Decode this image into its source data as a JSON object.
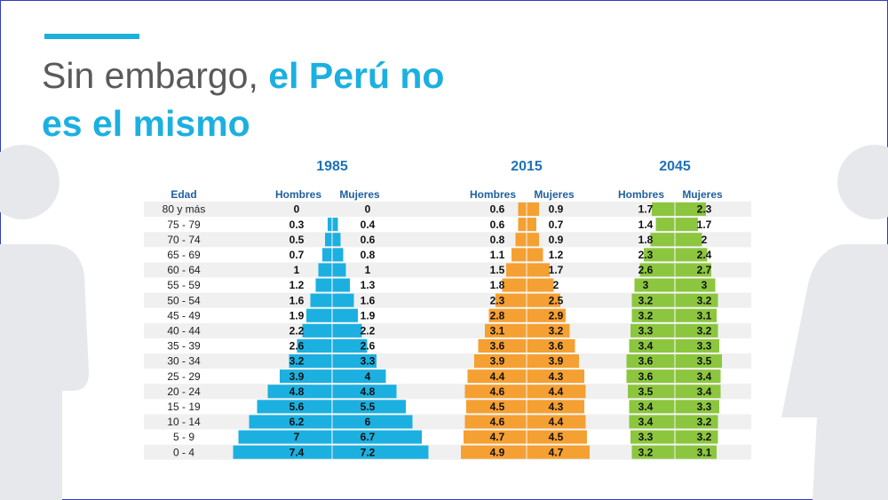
{
  "title": [
    "Sin embargo,",
    "el Perú no",
    "es el mismo"
  ],
  "chart_data": {
    "type": "pyramid",
    "category_label": "Edad",
    "categories": [
      "80 y más",
      "75 - 79",
      "70 - 74",
      "65 - 69",
      "60 - 64",
      "55 - 59",
      "50 - 54",
      "45 - 49",
      "40 - 44",
      "35 - 39",
      "30 - 34",
      "25 - 29",
      "20 - 24",
      "15 - 19",
      "10 - 14",
      "5 - 9",
      "0 - 4"
    ],
    "panels": [
      {
        "title": "1985",
        "series": [
          {
            "name": "Hombres",
            "color": "#1cb0e0",
            "values": [
              0,
              0.3,
              0.5,
              0.7,
              1,
              1.2,
              1.6,
              1.9,
              2.2,
              2.6,
              3.2,
              3.9,
              4.8,
              5.6,
              6.2,
              7,
              7.4
            ]
          },
          {
            "name": "Mujeres",
            "color": "#1cb0e0",
            "values": [
              0,
              0.4,
              0.6,
              0.8,
              1,
              1.3,
              1.6,
              1.9,
              2.2,
              2.6,
              3.3,
              4,
              4.8,
              5.5,
              6,
              6.7,
              7.2
            ]
          }
        ]
      },
      {
        "title": "2015",
        "series": [
          {
            "name": "Hombres",
            "color": "#f5a032",
            "values": [
              0.6,
              0.6,
              0.8,
              1.1,
              1.5,
              1.8,
              2.3,
              2.8,
              3.1,
              3.6,
              3.9,
              4.4,
              4.6,
              4.5,
              4.6,
              4.7,
              4.9
            ]
          },
          {
            "name": "Mujeres",
            "color": "#f5a032",
            "values": [
              0.9,
              0.7,
              0.9,
              1.2,
              1.7,
              2,
              2.5,
              2.9,
              3.2,
              3.6,
              3.9,
              4.3,
              4.4,
              4.3,
              4.4,
              4.5,
              4.7
            ]
          }
        ]
      },
      {
        "title": "2045",
        "series": [
          {
            "name": "Hombres",
            "color": "#8cc63f",
            "values": [
              1.7,
              1.4,
              1.8,
              2.3,
              2.6,
              3,
              3.2,
              3.2,
              3.3,
              3.4,
              3.6,
              3.6,
              3.5,
              3.4,
              3.4,
              3.3,
              3.2
            ]
          },
          {
            "name": "Mujeres",
            "color": "#8cc63f",
            "values": [
              2.3,
              1.7,
              2,
              2.4,
              2.7,
              3,
              3.2,
              3.1,
              3.2,
              3.3,
              3.5,
              3.4,
              3.4,
              3.3,
              3.2,
              3.2,
              3.1
            ]
          }
        ]
      }
    ]
  }
}
